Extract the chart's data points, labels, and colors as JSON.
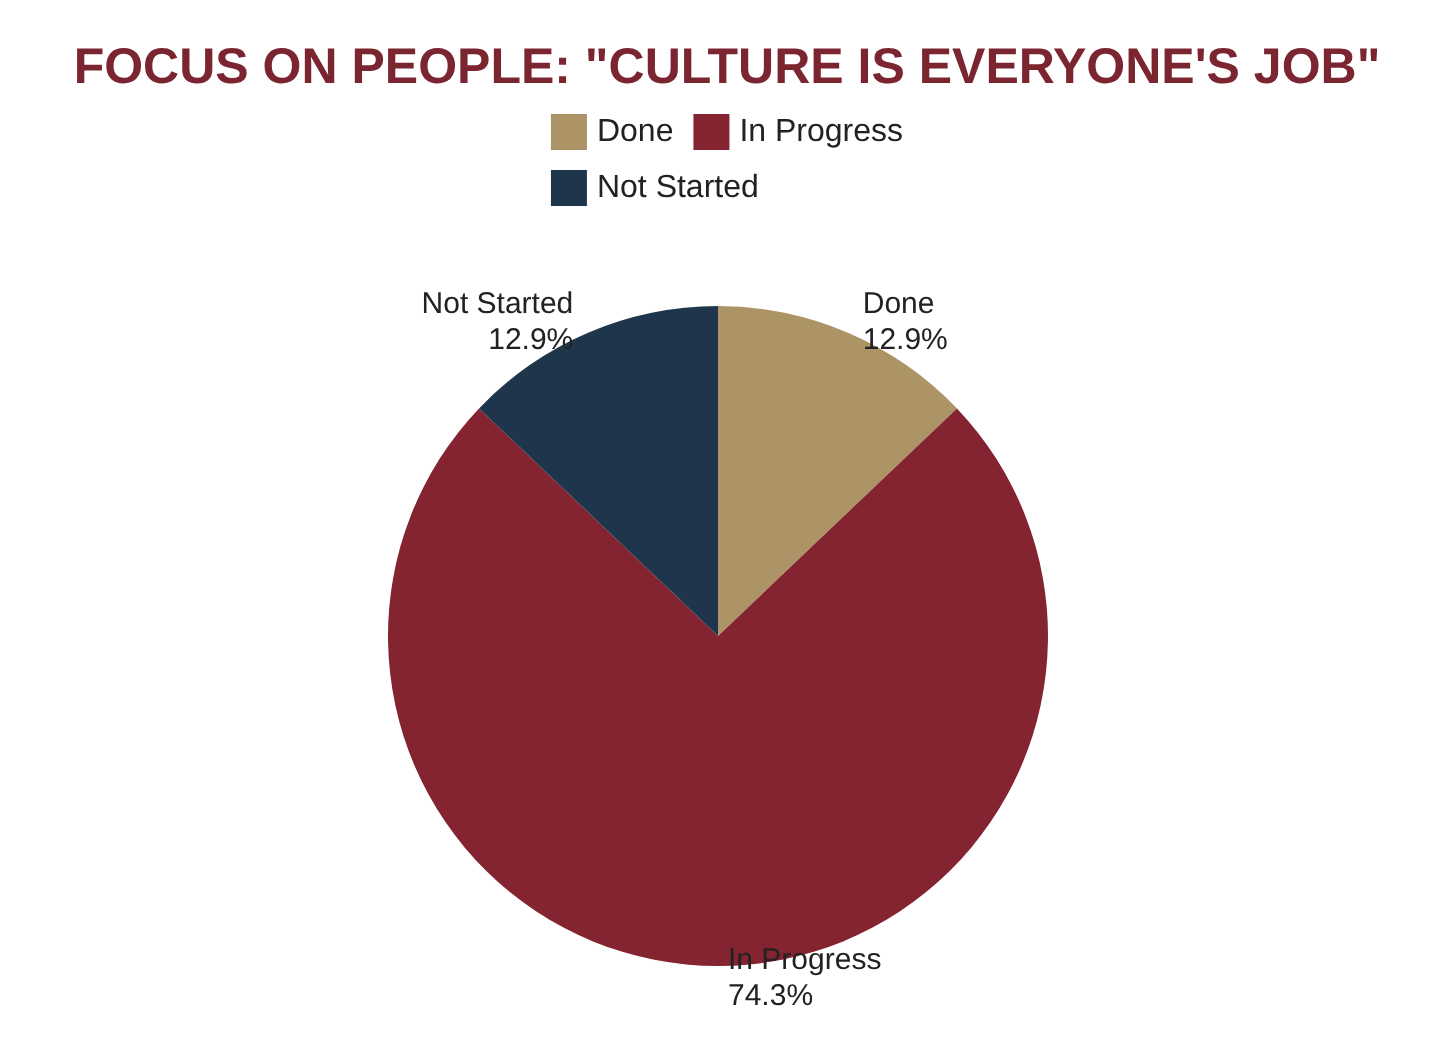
{
  "chart_data": {
    "type": "pie",
    "title": "FOCUS ON PEOPLE: \"CULTURE IS EVERYONE'S JOB\"",
    "categories": [
      "Done",
      "In Progress",
      "Not Started"
    ],
    "values": [
      12.9,
      74.3,
      12.9
    ],
    "value_labels": [
      "12.9%",
      "74.3%",
      "12.9%"
    ],
    "colors": [
      "#ad9467",
      "#852431",
      "#1f354b"
    ],
    "legend": "top"
  }
}
